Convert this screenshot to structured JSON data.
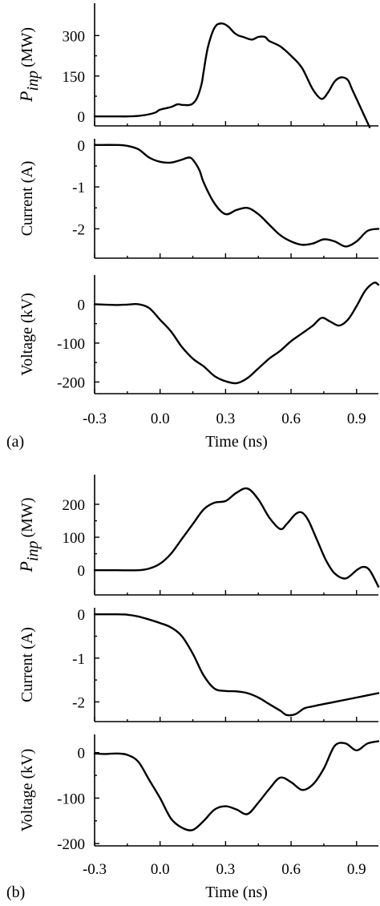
{
  "chart_data": [
    {
      "panel_label": "(a)",
      "type": "line",
      "xlabel": "Time (ns)",
      "xlim": [
        -0.3,
        1.0
      ],
      "xticks": [
        "-0.3",
        "0.0",
        "0.3",
        "0.6",
        "0.9"
      ],
      "subplots": [
        {
          "ylabel": "P_inp (MW)",
          "ylabel_main": "P",
          "ylabel_sub": "inp",
          "ylabel_unit": "(MW)",
          "ylim": [
            -35,
            420
          ],
          "yticks": [
            "300",
            "150",
            "0"
          ],
          "ytick_values": [
            300,
            150,
            0
          ],
          "x": [
            -0.3,
            -0.2,
            -0.15,
            -0.1,
            -0.05,
            -0.02,
            0.0,
            0.05,
            0.08,
            0.1,
            0.13,
            0.15,
            0.17,
            0.19,
            0.2,
            0.22,
            0.25,
            0.28,
            0.31,
            0.34,
            0.36,
            0.38,
            0.42,
            0.45,
            0.48,
            0.5,
            0.55,
            0.6,
            0.65,
            0.7,
            0.74,
            0.77,
            0.8,
            0.83,
            0.86,
            0.88,
            0.92,
            0.96
          ],
          "values": [
            0,
            0,
            0,
            2,
            8,
            15,
            25,
            35,
            45,
            43,
            42,
            48,
            70,
            120,
            170,
            260,
            330,
            345,
            335,
            310,
            300,
            295,
            285,
            295,
            295,
            280,
            260,
            225,
            180,
            100,
            65,
            90,
            130,
            145,
            135,
            100,
            30,
            -40
          ]
        },
        {
          "ylabel": "Current (A)",
          "ylim": [
            -2.7,
            0.15
          ],
          "yticks": [
            "0",
            "-1",
            "-2"
          ],
          "ytick_values": [
            0,
            -1,
            -2
          ],
          "x": [
            -0.3,
            -0.2,
            -0.15,
            -0.1,
            -0.05,
            0.0,
            0.05,
            0.1,
            0.13,
            0.15,
            0.18,
            0.2,
            0.25,
            0.3,
            0.35,
            0.4,
            0.45,
            0.5,
            0.55,
            0.6,
            0.65,
            0.7,
            0.75,
            0.8,
            0.85,
            0.9,
            0.95,
            1.0
          ],
          "values": [
            0,
            0,
            -0.02,
            -0.1,
            -0.3,
            -0.4,
            -0.42,
            -0.35,
            -0.3,
            -0.35,
            -0.6,
            -0.9,
            -1.4,
            -1.65,
            -1.55,
            -1.5,
            -1.65,
            -1.9,
            -2.15,
            -2.3,
            -2.38,
            -2.35,
            -2.25,
            -2.3,
            -2.42,
            -2.3,
            -2.05,
            -2.0
          ]
        },
        {
          "ylabel": "Voltage  (kV)",
          "ylim": [
            -230,
            75
          ],
          "yticks": [
            "0",
            "-100",
            "-200"
          ],
          "ytick_values": [
            0,
            -100,
            -200
          ],
          "x": [
            -0.3,
            -0.2,
            -0.15,
            -0.1,
            -0.05,
            0.0,
            0.05,
            0.1,
            0.15,
            0.2,
            0.25,
            0.3,
            0.35,
            0.4,
            0.45,
            0.5,
            0.55,
            0.6,
            0.65,
            0.7,
            0.74,
            0.78,
            0.82,
            0.86,
            0.9,
            0.94,
            0.98,
            1.0
          ],
          "values": [
            0,
            -2,
            -1,
            0,
            -10,
            -40,
            -70,
            -110,
            -140,
            -160,
            -185,
            -198,
            -203,
            -190,
            -165,
            -140,
            -120,
            -95,
            -75,
            -55,
            -35,
            -45,
            -55,
            -40,
            -5,
            35,
            55,
            50
          ]
        }
      ]
    },
    {
      "panel_label": "(b)",
      "type": "line",
      "xlabel": "Time (ns)",
      "xlim": [
        -0.3,
        1.0
      ],
      "xticks": [
        "-0.3",
        "0.0",
        "0.3",
        "0.6",
        "0.9"
      ],
      "subplots": [
        {
          "ylabel": "P_inp (MW)",
          "ylabel_main": "P",
          "ylabel_sub": "inp",
          "ylabel_unit": "(MW)",
          "ylim": [
            -75,
            290
          ],
          "yticks": [
            "200",
            "100",
            "0"
          ],
          "ytick_values": [
            200,
            100,
            0
          ],
          "x": [
            -0.3,
            -0.2,
            -0.1,
            -0.05,
            0.0,
            0.05,
            0.1,
            0.15,
            0.2,
            0.25,
            0.3,
            0.35,
            0.4,
            0.45,
            0.5,
            0.55,
            0.58,
            0.62,
            0.65,
            0.68,
            0.72,
            0.76,
            0.8,
            0.85,
            0.9,
            0.93,
            0.96,
            1.0
          ],
          "values": [
            0,
            0,
            0,
            5,
            20,
            50,
            95,
            140,
            185,
            205,
            210,
            235,
            248,
            215,
            160,
            125,
            140,
            170,
            175,
            150,
            90,
            30,
            -10,
            -25,
            0,
            10,
            0,
            -50
          ]
        },
        {
          "ylabel": "Current (A)",
          "ylim": [
            -2.45,
            0.15
          ],
          "yticks": [
            "0",
            "-1",
            "-2"
          ],
          "ytick_values": [
            0,
            -1,
            -2
          ],
          "x": [
            -0.3,
            -0.2,
            -0.15,
            -0.1,
            -0.05,
            0.0,
            0.05,
            0.1,
            0.15,
            0.2,
            0.25,
            0.3,
            0.35,
            0.4,
            0.45,
            0.5,
            0.55,
            0.58,
            0.62,
            0.66,
            0.7,
            0.8,
            0.9,
            1.0
          ],
          "values": [
            0,
            0,
            -0.01,
            -0.05,
            -0.12,
            -0.2,
            -0.3,
            -0.5,
            -0.9,
            -1.4,
            -1.7,
            -1.75,
            -1.76,
            -1.8,
            -1.9,
            -2.05,
            -2.2,
            -2.3,
            -2.28,
            -2.15,
            -2.1,
            -2.0,
            -1.9,
            -1.8
          ]
        },
        {
          "ylabel": "Voltage  (kV)",
          "ylim": [
            -205,
            40
          ],
          "yticks": [
            "0",
            "-100",
            "-200"
          ],
          "ytick_values": [
            0,
            -100,
            -200
          ],
          "x": [
            -0.3,
            -0.25,
            -0.2,
            -0.15,
            -0.1,
            -0.05,
            0.0,
            0.05,
            0.1,
            0.15,
            0.2,
            0.25,
            0.3,
            0.35,
            0.4,
            0.45,
            0.5,
            0.55,
            0.6,
            0.65,
            0.7,
            0.75,
            0.8,
            0.85,
            0.9,
            0.95,
            1.0
          ],
          "values": [
            -2,
            -3,
            -2,
            -5,
            -20,
            -60,
            -100,
            -145,
            -165,
            -170,
            -150,
            -125,
            -118,
            -125,
            -135,
            -110,
            -80,
            -55,
            -65,
            -82,
            -70,
            -35,
            15,
            20,
            5,
            20,
            25
          ]
        }
      ]
    }
  ]
}
